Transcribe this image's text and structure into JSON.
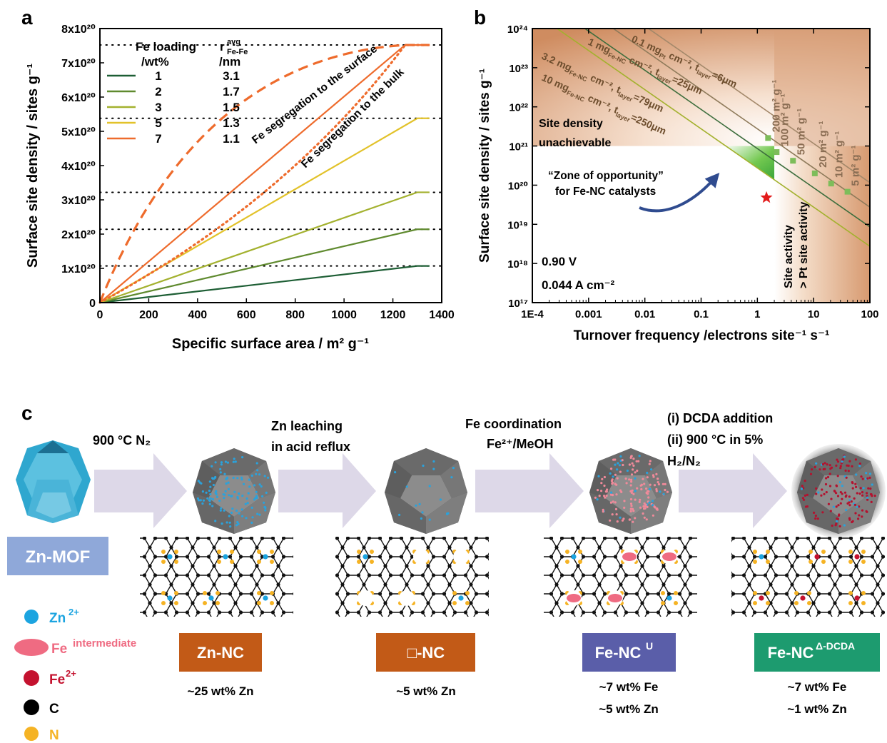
{
  "panel_labels": {
    "a": "a",
    "b": "b",
    "c": "c"
  },
  "chart_data": [
    {
      "panel": "a",
      "type": "line",
      "xlabel": "Specific surface area / m² g⁻¹",
      "ylabel": "Surface site density / sites g⁻¹",
      "xlim": [
        0,
        1400
      ],
      "ylim": [
        0,
        8e+20
      ],
      "x_ticks": [
        "0",
        "200",
        "400",
        "600",
        "800",
        "1000",
        "1200",
        "1400"
      ],
      "y_ticks": [
        "0",
        "1x10²⁰",
        "2x10²⁰",
        "3x10²⁰",
        "4x10²⁰",
        "5x10²⁰",
        "6x10²⁰",
        "7x10²⁰",
        "8x10²⁰"
      ],
      "legend": {
        "header_col1": "Fe loading",
        "header_col1_unit": "/wt%",
        "header_col2": "r",
        "header_col2_sup": "avg",
        "header_col2_sub": "Fe-Fe",
        "header_col2_unit": "/nm",
        "entries": [
          {
            "loading": "1",
            "r": "3.1",
            "color": "#1d5e34"
          },
          {
            "loading": "2",
            "r": "1.7",
            "color": "#5f8a2e"
          },
          {
            "loading": "3",
            "r": "1.5",
            "color": "#a3b12e"
          },
          {
            "loading": "5",
            "r": "1.3",
            "color": "#e2c22a"
          },
          {
            "loading": "7",
            "r": "1.1",
            "color": "#ee6b2c"
          }
        ]
      },
      "series": [
        {
          "name": "1",
          "style": "solid",
          "color": "#1d5e34",
          "x": [
            0,
            1300,
            1350
          ],
          "y": [
            0,
            1.07e+20,
            1.07e+20
          ]
        },
        {
          "name": "2",
          "style": "solid",
          "color": "#5f8a2e",
          "x": [
            0,
            1300,
            1350
          ],
          "y": [
            0,
            2.14e+20,
            2.14e+20
          ]
        },
        {
          "name": "3",
          "style": "solid",
          "color": "#a3b12e",
          "x": [
            0,
            1300,
            1350
          ],
          "y": [
            0,
            3.22e+20,
            3.22e+20
          ]
        },
        {
          "name": "5",
          "style": "solid",
          "color": "#e2c22a",
          "x": [
            0,
            1300,
            1350
          ],
          "y": [
            0,
            5.38e+20,
            5.38e+20
          ]
        },
        {
          "name": "7",
          "style": "solid",
          "color": "#ee6b2c",
          "x": [
            0,
            1250,
            1350
          ],
          "y": [
            0,
            7.52e+20,
            7.52e+20
          ]
        },
        {
          "style": "dashed",
          "color": "#ee6b2c",
          "x": [
            0,
            1250,
            1350
          ],
          "y": [
            0,
            7.52e+20,
            7.52e+20
          ],
          "curve": "concave"
        },
        {
          "style": "dotted",
          "color": "#ee6b2c",
          "x": [
            0,
            1250,
            1350
          ],
          "y": [
            0,
            7.52e+20,
            7.52e+20
          ],
          "curve": "convex"
        }
      ],
      "reference_lines": [
        {
          "y": 1.07e+20,
          "style": "dotted",
          "color": "#000000"
        },
        {
          "y": 2.14e+20,
          "style": "dotted",
          "color": "#000000"
        },
        {
          "y": 3.22e+20,
          "style": "dotted",
          "color": "#000000"
        },
        {
          "y": 5.38e+20,
          "style": "dotted",
          "color": "#000000"
        },
        {
          "y": 7.52e+20,
          "style": "dotted",
          "color": "#000000"
        }
      ],
      "annotations": {
        "surface": "Fe segregation to the surface",
        "bulk": "Fe segregation to the bulk"
      }
    },
    {
      "panel": "b",
      "type": "line",
      "xlabel": "Turnover frequency /electrons site⁻¹ s⁻¹",
      "ylabel": "Surface site density / sites g⁻¹",
      "xscale": "log",
      "yscale": "log",
      "xlim": [
        0.0001,
        100
      ],
      "ylim": [
        1e+17,
        1e+24
      ],
      "x_ticks": [
        "1E-4",
        "0.001",
        "0.01",
        "0.1",
        "1",
        "10",
        "100"
      ],
      "y_ticks": [
        "10¹⁷",
        "10¹⁸",
        "10¹⁹",
        "10²⁰",
        "10²¹",
        "10²²",
        "10²³",
        "10²⁴"
      ],
      "series": [
        {
          "name": "0.1 mgPt cm-2, tlayer=6μm",
          "color": "#a3886a",
          "x": [
            0.0001,
            100
          ],
          "y": [
            1.16e+26,
            1.16e+20
          ]
        },
        {
          "name": "1 mgFe-NC cm-2, tlayer=25μm",
          "color": "#8e7a5a",
          "x": [
            0.0001,
            100
          ],
          "y": [
            2.75e+25,
            2.75e+19
          ]
        },
        {
          "name": "3.2 mgFe-NC cm-2, tlayer=79μm",
          "color": "#3d6e3d",
          "x": [
            0.0001,
            100
          ],
          "y": [
            8.6e+24,
            8.6e+18
          ]
        },
        {
          "name": "10 mgFe-NC cm-2, tlayer=250μm",
          "color": "#a3b12e",
          "x": [
            0.0001,
            100
          ],
          "y": [
            2.75e+24,
            2.75e+18
          ]
        }
      ],
      "line_labels": [
        {
          "main": "0.1 mg",
          "sub": "Pt",
          "rest": " cm⁻², t",
          "sub2": "layer",
          "end": "=6μm"
        },
        {
          "main": "1 mg",
          "sub": "Fe-NC",
          "rest": " cm⁻², t",
          "sub2": "layer",
          "end": "=25μm"
        },
        {
          "main": "3.2 mg",
          "sub": "Fe-NC",
          "rest": " cm⁻², t",
          "sub2": "layer",
          "end": "=79μm"
        },
        {
          "main": "10 mg",
          "sub": "Fe-NC",
          "rest": " cm⁻², t",
          "sub2": "layer",
          "end": "=250μm"
        }
      ],
      "surface_area_markers": [
        {
          "label": "200 m² g⁻¹",
          "x": 1.55,
          "y": 1.6e+21
        },
        {
          "label": "100 m² g⁻¹",
          "x": 2.2,
          "y": 7e+20
        },
        {
          "label": "50 m² g⁻¹",
          "x": 4.3,
          "y": 4.2e+20
        },
        {
          "label": "20 m² g⁻¹",
          "x": 10.5,
          "y": 2e+20
        },
        {
          "label": "10 m² g⁻¹",
          "x": 20.5,
          "y": 1.1e+20
        },
        {
          "label": "5 m² g⁻¹",
          "x": 40,
          "y": 6.8e+19
        }
      ],
      "marker_color": "#7dbd5a",
      "star": {
        "x": 1.45,
        "y": 4.8e+19,
        "color": "#e21a1a"
      },
      "zone_bounds": {
        "x": [
          0.02,
          2
        ],
        "y_top": 1e+21
      },
      "annotations": {
        "unachievable_line1": "Site density",
        "unachievable_line2": "unachievable",
        "zone_line1": "“Zone of opportunity”",
        "zone_line2": "for Fe-NC catalysts",
        "site_activity_line1": "Site activity",
        "site_activity_line2": "> Pt site activity",
        "conditions_voltage": "0.90 V",
        "conditions_current": "0.044 A cm⁻²"
      }
    }
  ],
  "panel_c": {
    "steps": [
      {
        "line1": "900 °C  N₂"
      },
      {
        "line1": "Zn leaching",
        "line2": "in acid reflux"
      },
      {
        "line1": "Fe coordination",
        "line2": "Fe²⁺/MeOH"
      },
      {
        "line1": "(i) DCDA addition",
        "line2": "(ii) 900 °C in 5%",
        "line3": "H₂/N₂"
      }
    ],
    "materials": [
      {
        "name": "Zn-MOF",
        "color": "#8fa8d9"
      },
      {
        "name": "Zn-NC",
        "color": "#c25a17",
        "composition": [
          "~25 wt% Zn"
        ]
      },
      {
        "name": "□-NC",
        "color": "#c25a17",
        "composition": [
          "~5 wt% Zn"
        ]
      },
      {
        "name": "Fe-NC",
        "sup": "U",
        "color": "#5a5ea9",
        "composition": [
          "~7 wt% Fe",
          "~5 wt% Zn"
        ]
      },
      {
        "name": "Fe-NC",
        "sup": "Δ-DCDA",
        "color": "#1d9b6f",
        "composition": [
          "~7 wt% Fe",
          "~1 wt% Zn"
        ]
      }
    ],
    "legend": [
      {
        "symbol": "Zn",
        "sup": "2+",
        "color": "#1ca4e0",
        "shape": "circle"
      },
      {
        "symbol": "Fe",
        "sup": "intermediate",
        "color": "#ef6b82",
        "shape": "ellipse"
      },
      {
        "symbol": "Fe",
        "sup": "2+",
        "color": "#c4122f",
        "shape": "circle"
      },
      {
        "symbol": "C",
        "color": "#000000",
        "shape": "circle"
      },
      {
        "symbol": "N",
        "color": "#f5b324",
        "shape": "circle"
      }
    ]
  }
}
